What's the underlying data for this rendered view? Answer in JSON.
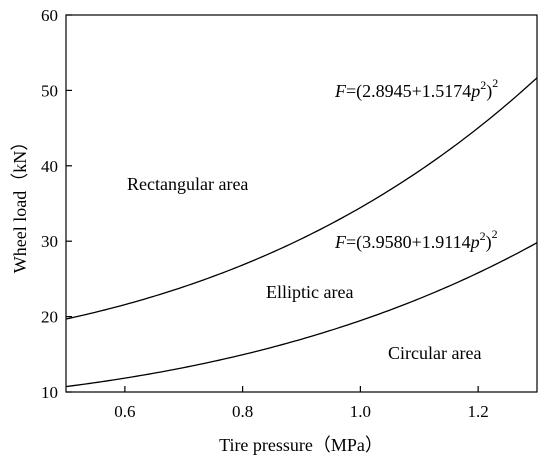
{
  "chart_data": {
    "type": "line",
    "xlabel": "Tire pressure（MPa）",
    "ylabel": "Wheel load（kN）",
    "xlim": [
      0.5,
      1.3
    ],
    "ylim": [
      10,
      60
    ],
    "x_ticks": [
      "0.6",
      "0.8",
      "1.0",
      "1.2"
    ],
    "y_ticks": [
      "10",
      "20",
      "30",
      "40",
      "50",
      "60"
    ],
    "grid": false,
    "series": [
      {
        "coef_a": 2.8945,
        "coef_b": 1.5174,
        "eq_var": "F",
        "eq_body": "=(2.8945+1.5174",
        "eq_p": "p",
        "eq_inner_exp": "2",
        "eq_close": ")",
        "eq_outer_exp": "2"
      },
      {
        "coef_a": 3.958,
        "coef_b": 1.9114,
        "eq_var": "F",
        "eq_body": "=(3.9580+1.9114",
        "eq_p": "p",
        "eq_inner_exp": "2",
        "eq_close": ")",
        "eq_outer_exp": "2"
      }
    ],
    "regions": {
      "top": "Rectangular area",
      "middle": "Elliptic area",
      "bottom": "Circular area"
    }
  }
}
